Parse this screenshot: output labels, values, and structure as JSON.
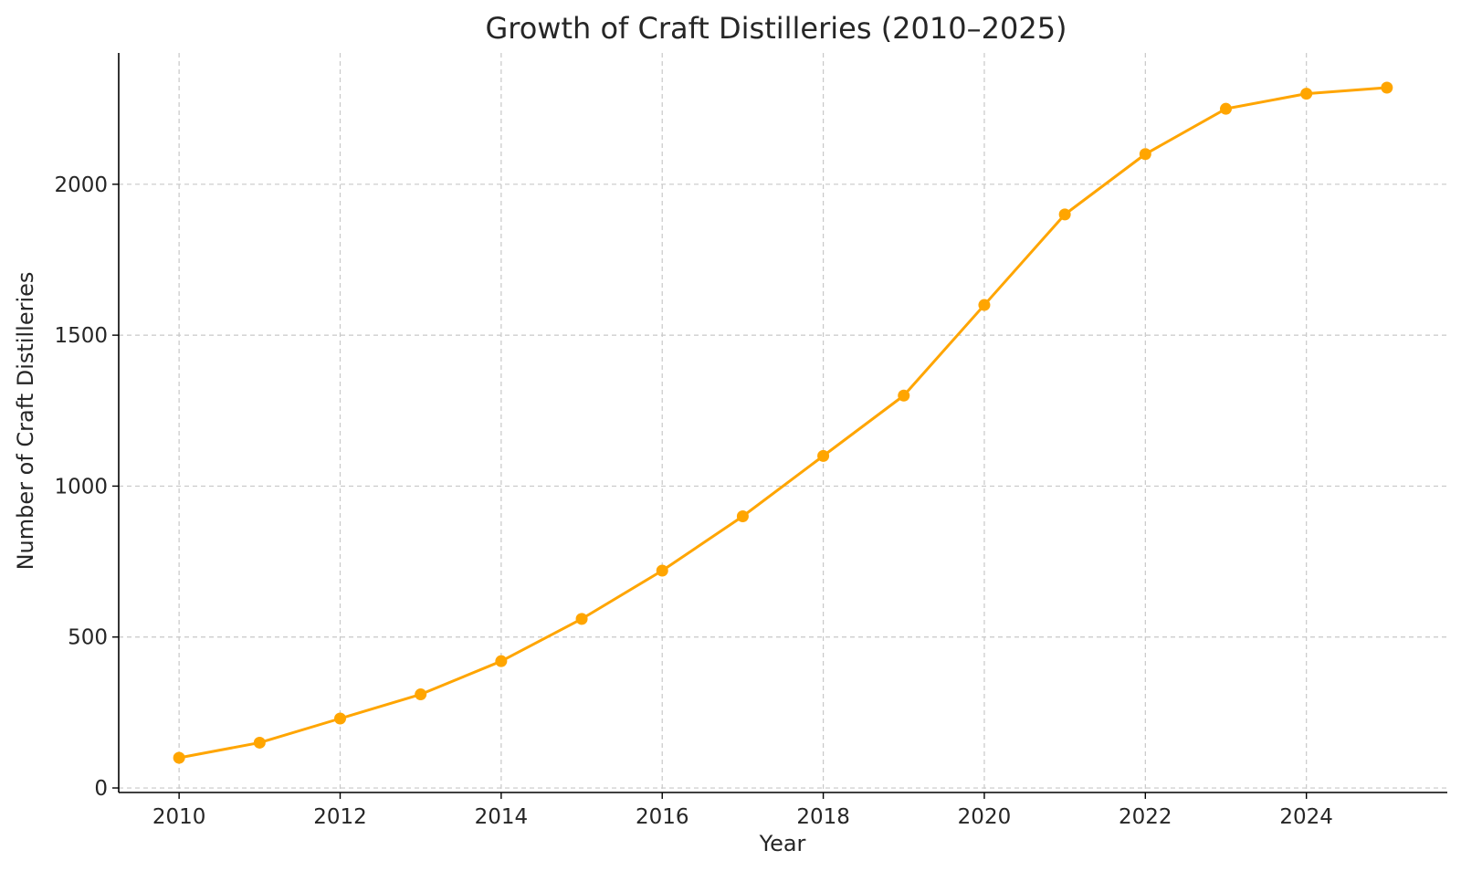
{
  "chart_data": {
    "type": "line",
    "title": "Growth of Craft Distilleries (2010–2025)",
    "xlabel": "Year",
    "ylabel": "Number of Craft Distilleries",
    "x": [
      2010,
      2011,
      2012,
      2013,
      2014,
      2015,
      2016,
      2017,
      2018,
      2019,
      2020,
      2021,
      2022,
      2023,
      2024,
      2025
    ],
    "series": [
      {
        "values": [
          100,
          150,
          230,
          310,
          420,
          560,
          720,
          900,
          1100,
          1300,
          1600,
          1900,
          2100,
          2250,
          2300,
          2320
        ],
        "color": "#ffa500"
      }
    ],
    "x_ticks": [
      2010,
      2012,
      2014,
      2016,
      2018,
      2020,
      2022,
      2024
    ],
    "y_ticks": [
      0,
      500,
      1000,
      1500,
      2000
    ],
    "xlim": [
      2009.25,
      2025.75
    ],
    "ylim": [
      -15,
      2435
    ],
    "grid": true,
    "markers": true
  }
}
